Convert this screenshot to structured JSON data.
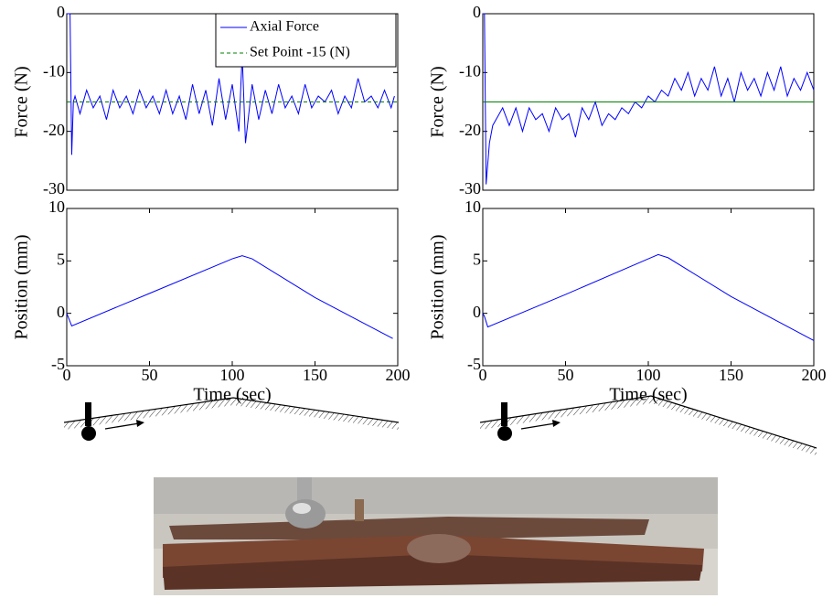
{
  "chart_data": [
    {
      "type": "line",
      "ylabel": "Force (N)",
      "xlim": [
        0,
        200
      ],
      "ylim": [
        -30,
        0
      ],
      "yticks": [
        -30,
        -20,
        -10,
        0
      ],
      "legend": "top-right",
      "series": [
        {
          "name": "Axial Force",
          "color": "#0000ff",
          "x": [
            0,
            2,
            3,
            4,
            5,
            8,
            12,
            16,
            20,
            24,
            28,
            32,
            36,
            40,
            44,
            48,
            52,
            56,
            60,
            64,
            68,
            72,
            76,
            80,
            84,
            88,
            92,
            96,
            100,
            104,
            106,
            108,
            112,
            116,
            120,
            124,
            128,
            132,
            136,
            140,
            144,
            148,
            152,
            156,
            160,
            164,
            168,
            172,
            176,
            180,
            184,
            188,
            192,
            196,
            198
          ],
          "values": [
            0,
            0,
            -24,
            -15,
            -14,
            -17,
            -13,
            -16,
            -14,
            -18,
            -13,
            -16,
            -14,
            -17,
            -13,
            -16,
            -14,
            -17,
            -13,
            -17,
            -14,
            -18,
            -12,
            -17,
            -13,
            -19,
            -11,
            -18,
            -12,
            -20,
            -7,
            -22,
            -12,
            -18,
            -13,
            -17,
            -12,
            -16,
            -14,
            -17,
            -12,
            -16,
            -14,
            -15,
            -13,
            -17,
            -14,
            -16,
            -11,
            -15,
            -14,
            -16,
            -13,
            -16,
            -14
          ]
        },
        {
          "name": "Set Point -15 (N)",
          "color": "#008000",
          "dash": true,
          "x": [
            0,
            200
          ],
          "values": [
            -15,
            -15
          ]
        }
      ]
    },
    {
      "type": "line",
      "ylabel": "Force (N)",
      "xlim": [
        0,
        200
      ],
      "ylim": [
        -30,
        0
      ],
      "yticks": [
        -30,
        -20,
        -10,
        0
      ],
      "series": [
        {
          "color": "#0000ff",
          "x": [
            0,
            1,
            2,
            4,
            6,
            8,
            12,
            16,
            20,
            24,
            28,
            32,
            36,
            40,
            44,
            48,
            52,
            56,
            60,
            64,
            68,
            72,
            76,
            80,
            84,
            88,
            92,
            96,
            100,
            104,
            108,
            112,
            116,
            120,
            124,
            128,
            132,
            136,
            140,
            144,
            148,
            152,
            156,
            160,
            164,
            168,
            172,
            176,
            180,
            184,
            188,
            192,
            196,
            200
          ],
          "values": [
            0,
            0,
            -29,
            -22,
            -19,
            -18,
            -16,
            -19,
            -16,
            -20,
            -16,
            -18,
            -17,
            -20,
            -16,
            -18,
            -17,
            -21,
            -16,
            -18,
            -15,
            -19,
            -17,
            -18,
            -16,
            -17,
            -15,
            -16,
            -14,
            -15,
            -13,
            -14,
            -11,
            -13,
            -10,
            -14,
            -11,
            -13,
            -9,
            -14,
            -11,
            -15,
            -10,
            -13,
            -11,
            -14,
            -10,
            -13,
            -9,
            -14,
            -11,
            -13,
            -10,
            -13
          ]
        },
        {
          "color": "#008000",
          "x": [
            0,
            200
          ],
          "values": [
            -15,
            -15
          ]
        }
      ]
    },
    {
      "type": "line",
      "xlabel": "Time (sec)",
      "ylabel": "Position (mm)",
      "xlim": [
        0,
        200
      ],
      "ylim": [
        -5,
        10
      ],
      "xticks": [
        0,
        50,
        100,
        150,
        200
      ],
      "yticks": [
        -5,
        0,
        5,
        10
      ],
      "series": [
        {
          "color": "#0000ff",
          "x": [
            0,
            1,
            3,
            50,
            100,
            106,
            112,
            150,
            197
          ],
          "values": [
            0,
            -0.4,
            -1.2,
            1.9,
            5.2,
            5.5,
            5.2,
            1.5,
            -2.4
          ]
        }
      ]
    },
    {
      "type": "line",
      "xlabel": "Time (sec)",
      "ylabel": "Position (mm)",
      "xlim": [
        0,
        200
      ],
      "ylim": [
        -5,
        10
      ],
      "xticks": [
        0,
        50,
        100,
        150,
        200
      ],
      "yticks": [
        -5,
        0,
        5,
        10
      ],
      "series": [
        {
          "color": "#0000ff",
          "x": [
            0,
            1,
            3,
            50,
            100,
            106,
            112,
            150,
            200
          ],
          "values": [
            0,
            -0.3,
            -1.3,
            1.8,
            5.2,
            5.6,
            5.3,
            1.6,
            -2.6
          ]
        }
      ]
    }
  ]
}
